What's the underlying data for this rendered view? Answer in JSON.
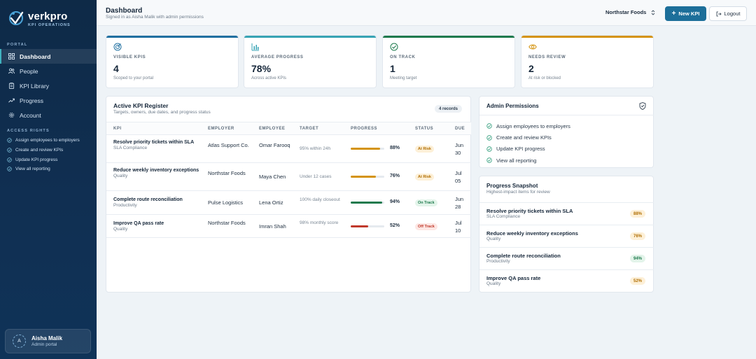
{
  "brand": {
    "name": "verkpro",
    "subtitle": "KPI OPERATIONS"
  },
  "sidebar": {
    "portal_label": "PORTAL",
    "items": [
      {
        "label": "Dashboard",
        "icon": "grid-icon",
        "active": true
      },
      {
        "label": "People",
        "icon": "people-icon"
      },
      {
        "label": "KPI Library",
        "icon": "clipboard-icon"
      },
      {
        "label": "Progress",
        "icon": "trend-icon"
      },
      {
        "label": "Account",
        "icon": "gear-icon"
      }
    ],
    "rights_label": "ACCESS RIGHTS",
    "rights": [
      "Assign employees to employers",
      "Create and review KPIs",
      "Update KPI progress",
      "View all reporting"
    ],
    "user": {
      "initial": "A",
      "name": "Aisha Malik",
      "role": "Admin portal"
    }
  },
  "header": {
    "title": "Dashboard",
    "subtitle": "Signed in as Aisha Malik with admin permissions",
    "org": "Northstar Foods",
    "new_kpi": "New KPI",
    "logout": "Logout"
  },
  "stats": [
    {
      "label": "VISIBLE KPIS",
      "value": "4",
      "note": "Scoped to your portal",
      "color": "#1f6fa0",
      "icon": "target-icon"
    },
    {
      "label": "AVERAGE PROGRESS",
      "value": "78%",
      "note": "Across active KPIs",
      "color": "#36a3b4",
      "icon": "bar-chart-icon"
    },
    {
      "label": "ON TRACK",
      "value": "1",
      "note": "Meeting target",
      "color": "#1e7a4d",
      "icon": "check-circle-icon"
    },
    {
      "label": "NEEDS REVIEW",
      "value": "2",
      "note": "At risk or blocked",
      "color": "#d4930f",
      "icon": "eye-icon"
    }
  ],
  "register": {
    "title": "Active KPI Register",
    "subtitle": "Targets, owners, due dates, and progress status",
    "records": "4 records",
    "columns": [
      "KPI",
      "EMPLOYER",
      "EMPLOYEE",
      "TARGET",
      "PROGRESS",
      "STATUS",
      "DUE"
    ],
    "rows": [
      {
        "kpi": "Resolve priority tickets within SLA",
        "category": "SLA Compliance",
        "employer": "Atlas Support Co.",
        "employee": "Omar Farooq",
        "target": "95% within 24h",
        "progress": 0.88,
        "pct": "88%",
        "status": "At Risk",
        "due_month": "Jun",
        "due_day": "30"
      },
      {
        "kpi": "Reduce weekly inventory exceptions",
        "category": "Quality",
        "employer": "Northstar Foods",
        "employee": "Maya Chen",
        "target": "Under 12 cases",
        "progress": 0.76,
        "pct": "76%",
        "status": "At Risk",
        "due_month": "Jul",
        "due_day": "05"
      },
      {
        "kpi": "Complete route reconciliation",
        "category": "Productivity",
        "employer": "Pulse Logistics",
        "employee": "Lena Ortiz",
        "target": "100% daily closeout",
        "progress": 0.94,
        "pct": "94%",
        "status": "On Track",
        "due_month": "Jun",
        "due_day": "28"
      },
      {
        "kpi": "Improve QA pass rate",
        "category": "Quality",
        "employer": "Northstar Foods",
        "employee": "Imran Shah",
        "target": "98% monthly score",
        "progress": 0.52,
        "pct": "52%",
        "status": "Off Track",
        "due_month": "Jul",
        "due_day": "10"
      }
    ]
  },
  "permissions": {
    "title": "Admin Permissions",
    "items": [
      "Assign employees to employers",
      "Create and review KPIs",
      "Update KPI progress",
      "View all reporting"
    ]
  },
  "snapshot": {
    "title": "Progress Snapshot",
    "subtitle": "Highest-impact items for review",
    "items": [
      {
        "name": "Resolve priority tickets within SLA",
        "category": "SLA Compliance",
        "pct": "88%"
      },
      {
        "name": "Reduce weekly inventory exceptions",
        "category": "Quality",
        "pct": "76%"
      },
      {
        "name": "Complete route reconciliation",
        "category": "Productivity",
        "pct": "94%"
      },
      {
        "name": "Improve QA pass rate",
        "category": "Quality",
        "pct": "52%"
      }
    ]
  },
  "colors": {
    "at_risk_bar": "#d4930f",
    "on_track_bar": "#1e7a4d",
    "off_track_bar": "#c0392b",
    "accent": "#1d6f9a"
  }
}
